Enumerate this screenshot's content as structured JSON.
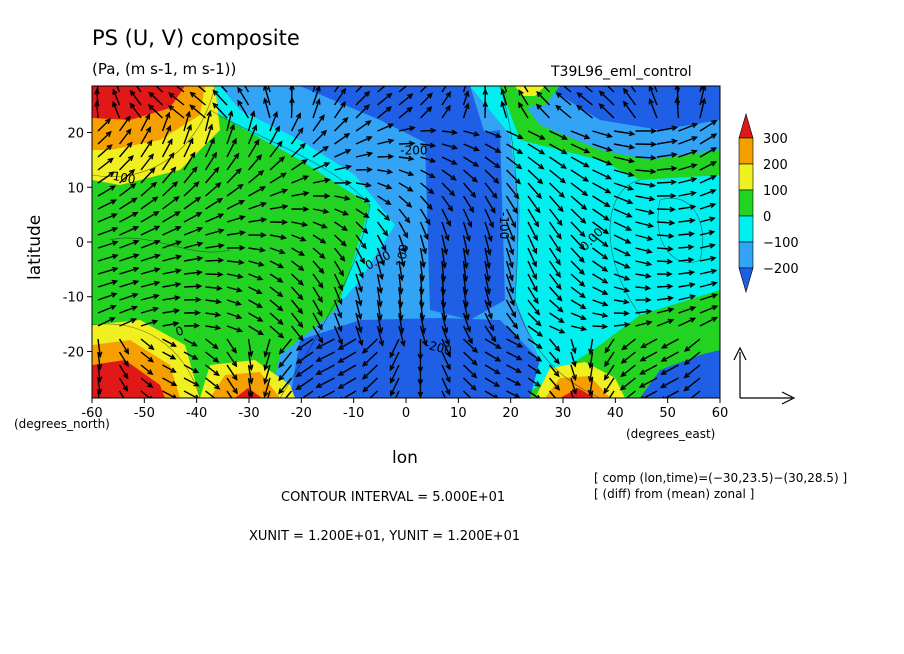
{
  "title": "PS (U, V) composite",
  "subtitle": "(Pa, (m s-1, m s-1))",
  "run_label": "T39L96_eml_control",
  "chart_data": {
    "type": "heatmap",
    "overlay": "vector",
    "xlabel": "lon",
    "ylabel": "latitude",
    "x_unit_label": "(degrees_east)",
    "y_unit_label": "(degrees_north)",
    "xlim": [
      -60,
      60
    ],
    "ylim": [
      -28.5,
      28.5
    ],
    "x_ticks": [
      -60,
      -50,
      -40,
      -30,
      -20,
      -10,
      0,
      10,
      20,
      30,
      40,
      50,
      60
    ],
    "y_ticks": [
      -20,
      -10,
      0,
      10,
      20
    ],
    "colorbar": {
      "levels": [
        -200,
        -100,
        0,
        100,
        200,
        300
      ],
      "labels": [
        "300",
        "200",
        "100",
        "0",
        "−100",
        "−200"
      ],
      "colors": [
        "#1f5fe6",
        "#33a3f5",
        "#00f0f0",
        "#22d322",
        "#f0f020",
        "#f5a000",
        "#e01818"
      ]
    },
    "contour_labels": [
      {
        "text": "100",
        "lon": -54,
        "lat": 11,
        "rot": 10
      },
      {
        "text": "-200",
        "lon": 1.5,
        "lat": 16,
        "rot": 0
      },
      {
        "text": "-100",
        "lon": 18,
        "lat": 3,
        "rot": 90
      },
      {
        "text": "-100",
        "lon": 0,
        "lat": -3,
        "rot": -80
      },
      {
        "text": "0.00",
        "lon": -5,
        "lat": -4,
        "rot": -28
      },
      {
        "text": "0.00",
        "lon": 36,
        "lat": 0,
        "rot": -45
      },
      {
        "text": "-200",
        "lon": 6,
        "lat": -20,
        "rot": 15
      },
      {
        "text": "0",
        "lon": -43,
        "lat": -17,
        "rot": -20
      }
    ],
    "reference_vector": {
      "label_x": "XUNIT = 1.200E+01",
      "label_y": "YUNIT = 1.200E+01"
    }
  },
  "footer": {
    "contour_interval": "CONTOUR INTERVAL = 5.000E+01",
    "units": "XUNIT = 1.200E+01, YUNIT = 1.200E+01",
    "comp_note": "[ comp (lon,time)=(−30,23.5)−(30,28.5) ]",
    "diff_note": "[ (diff) from (mean) zonal ]"
  }
}
